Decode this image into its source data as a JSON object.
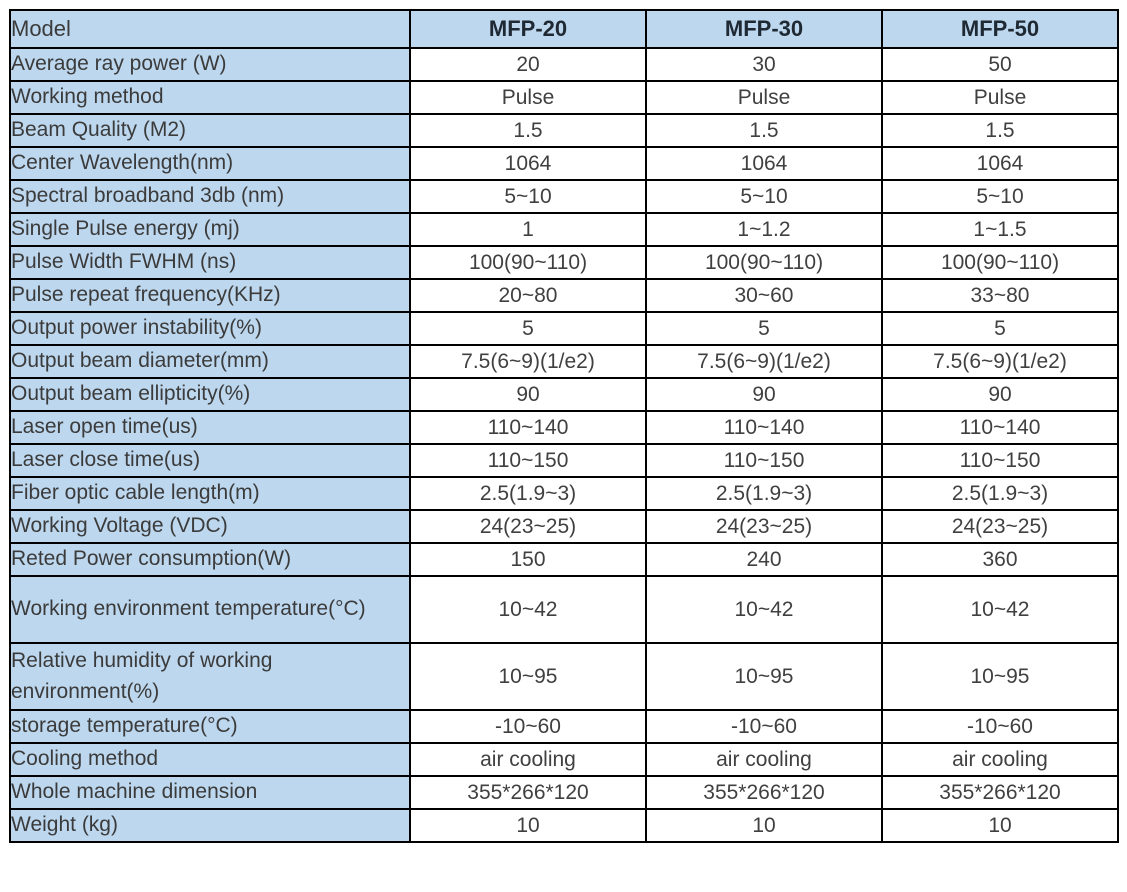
{
  "table": {
    "header": {
      "label": "Model",
      "columns": [
        "MFP-20",
        "MFP-30",
        "MFP-50"
      ]
    },
    "rows": [
      {
        "label": "Average ray power (W)",
        "values": [
          "20",
          "30",
          "50"
        ]
      },
      {
        "label": "Working method",
        "values": [
          "Pulse",
          "Pulse",
          "Pulse"
        ]
      },
      {
        "label": "Beam Quality (M2)",
        "values": [
          "1.5",
          "1.5",
          "1.5"
        ]
      },
      {
        "label": "Center Wavelength(nm)",
        "values": [
          "1064",
          "1064",
          "1064"
        ]
      },
      {
        "label": "Spectral broadband 3db (nm)",
        "values": [
          "5~10",
          "5~10",
          "5~10"
        ]
      },
      {
        "label": "Single Pulse energy (mj)",
        "values": [
          "1",
          "1~1.2",
          "1~1.5"
        ]
      },
      {
        "label": "Pulse Width FWHM (ns)",
        "values": [
          "100(90~110)",
          "100(90~110)",
          "100(90~110)"
        ]
      },
      {
        "label": "Pulse repeat frequency(KHz)",
        "values": [
          "20~80",
          "30~60",
          "33~80"
        ]
      },
      {
        "label": "Output power instability(%)",
        "values": [
          "5",
          "5",
          "5"
        ]
      },
      {
        "label": "Output beam diameter(mm)",
        "values": [
          "7.5(6~9)(1/e2)",
          "7.5(6~9)(1/e2)",
          "7.5(6~9)(1/e2)"
        ]
      },
      {
        "label": "Output beam ellipticity(%)",
        "values": [
          "90",
          "90",
          "90"
        ]
      },
      {
        "label": "Laser open time(us)",
        "values": [
          "110~140",
          "110~140",
          "110~140"
        ]
      },
      {
        "label": "Laser close time(us)",
        "values": [
          "110~150",
          "110~150",
          "110~150"
        ]
      },
      {
        "label": "Fiber optic cable length(m)",
        "values": [
          "2.5(1.9~3)",
          "2.5(1.9~3)",
          "2.5(1.9~3)"
        ]
      },
      {
        "label": "Working Voltage (VDC)",
        "values": [
          "24(23~25)",
          "24(23~25)",
          "24(23~25)"
        ]
      },
      {
        "label": "Reted Power consumption(W)",
        "values": [
          "150",
          "240",
          "360"
        ]
      },
      {
        "label": "Working environment temperature(°C)",
        "values": [
          "10~42",
          "10~42",
          "10~42"
        ],
        "tall": true
      },
      {
        "label": "Relative humidity of working environment(%)",
        "values": [
          "10~95",
          "10~95",
          "10~95"
        ],
        "tall": true
      },
      {
        "label": "storage temperature(°C)",
        "values": [
          "-10~60",
          "-10~60",
          "-10~60"
        ]
      },
      {
        "label": "Cooling method",
        "values": [
          "air cooling",
          "air cooling",
          "air cooling"
        ]
      },
      {
        "label": "Whole machine dimension",
        "values": [
          "355*266*120",
          "355*266*120",
          "355*266*120"
        ]
      },
      {
        "label": "Weight (kg)",
        "values": [
          "10",
          "10",
          "10"
        ]
      }
    ],
    "colors": {
      "header_bg": "#BDD7EE",
      "label_bg": "#BDD7EE",
      "value_bg": "#FFFFFF",
      "border": "#000000",
      "label_text": "#3B3B3B",
      "value_text": "#404040",
      "header_text": "#1F2933"
    }
  }
}
